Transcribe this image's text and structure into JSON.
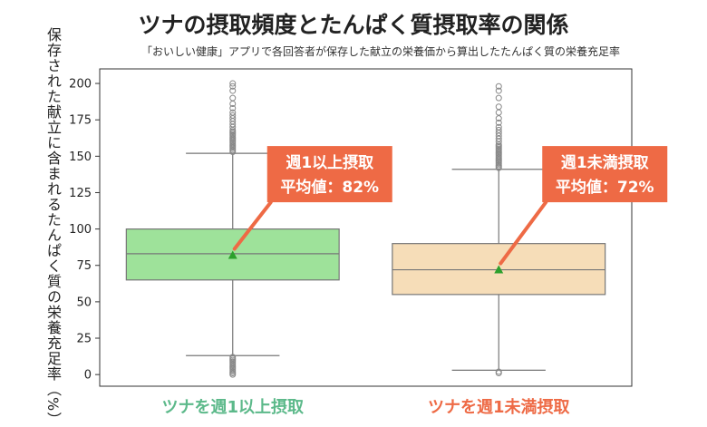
{
  "chart_data": {
    "type": "box",
    "title": "ツナの摂取頻度とたんぱく質摂取率の関係",
    "subtitle": "「おいしい健康」アプリで各回答者が保存した献立の栄養価から算出したたんぱく質の栄養充足率",
    "ylabel": "保存された献立に含まれるたんぱく質の栄養充足率（%）",
    "ylim": [
      -8,
      210
    ],
    "yticks": [
      0,
      25,
      50,
      75,
      100,
      125,
      150,
      175,
      200
    ],
    "categories": [
      "ツナを週1以上摂取",
      "ツナを週1未満摂取"
    ],
    "series": [
      {
        "category": "ツナを週1以上摂取",
        "whisker_low": 13,
        "q1": 65,
        "median": 83,
        "q3": 100,
        "whisker_high": 152,
        "mean": 82,
        "outliers_high": [
          153,
          154,
          155,
          156,
          157,
          158,
          159,
          160,
          161,
          162,
          163,
          164,
          165,
          166,
          167,
          168,
          170,
          172,
          174,
          176,
          178,
          180,
          183,
          186,
          190,
          195,
          198,
          200
        ],
        "outliers_low": [
          0,
          1,
          2,
          3,
          4,
          5,
          6,
          7,
          8,
          9,
          10,
          11,
          12
        ],
        "annotation": [
          "週1以上摂取",
          "平均値：82%"
        ],
        "color": "#9ee29a",
        "label_color": "#5cb98a"
      },
      {
        "category": "ツナを週1未満摂取",
        "whisker_low": 3,
        "q1": 55,
        "median": 72,
        "q3": 90,
        "whisker_high": 141,
        "mean": 72,
        "outliers_high": [
          142,
          143,
          144,
          145,
          146,
          147,
          148,
          149,
          150,
          151,
          152,
          153,
          154,
          155,
          156,
          157,
          158,
          160,
          162,
          164,
          166,
          168,
          170,
          173,
          176,
          180,
          184,
          190,
          195,
          198
        ],
        "outliers_low": [
          1,
          2
        ],
        "annotation": [
          "週1未満摂取",
          "平均値：72%"
        ],
        "color": "#f6ddb8",
        "label_color": "#ee6a45"
      }
    ],
    "annotation_color": "#ee6a45",
    "mean_marker_color": "#2ca02c"
  }
}
